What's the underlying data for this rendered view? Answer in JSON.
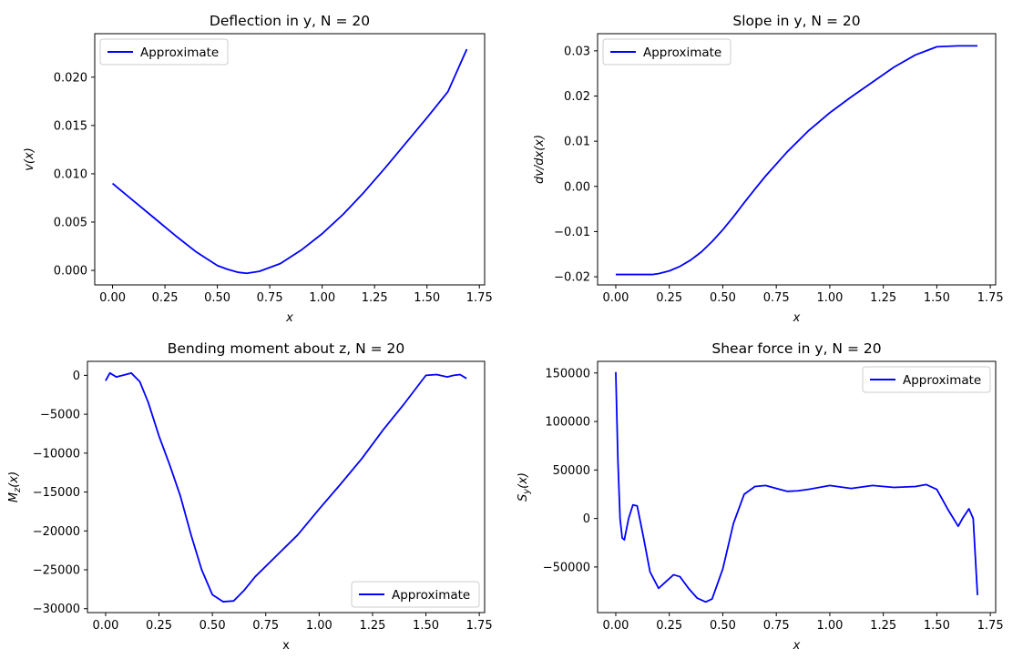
{
  "chart_data": [
    {
      "type": "line",
      "title": "Deflection in y, N = 20",
      "xlabel": "x",
      "ylabel": "v(x)",
      "xlim": [
        -0.085,
        1.775
      ],
      "ylim": [
        -0.0015,
        0.0245
      ],
      "xticks": [
        0,
        0.25,
        0.5,
        0.75,
        1.0,
        1.25,
        1.5,
        1.75
      ],
      "xtick_labels": [
        "0.00",
        "0.25",
        "0.50",
        "0.75",
        "1.00",
        "1.25",
        "1.50",
        "1.75"
      ],
      "yticks": [
        0,
        0.005,
        0.01,
        0.015,
        0.02
      ],
      "ytick_labels": [
        "0.000",
        "0.005",
        "0.010",
        "0.015",
        "0.020"
      ],
      "legend": "top-left",
      "series": [
        {
          "name": "Approximate",
          "color": "#0000ff",
          "x": [
            0,
            0.1,
            0.2,
            0.3,
            0.4,
            0.5,
            0.55,
            0.6,
            0.64,
            0.7,
            0.8,
            0.9,
            1.0,
            1.1,
            1.2,
            1.3,
            1.4,
            1.5,
            1.6,
            1.69
          ],
          "y": [
            0.009,
            0.0072,
            0.0054,
            0.0036,
            0.0019,
            0.0005,
            0.0001,
            -0.0002,
            -0.0003,
            -0.0001,
            0.0007,
            0.0021,
            0.0038,
            0.0058,
            0.0081,
            0.0106,
            0.0132,
            0.0158,
            0.0185,
            0.0229
          ]
        }
      ]
    },
    {
      "type": "line",
      "title": "Slope in y, N = 20",
      "xlabel": "x",
      "ylabel": "dv/dx(x)",
      "xlim": [
        -0.085,
        1.775
      ],
      "ylim": [
        -0.0218,
        0.0338
      ],
      "xticks": [
        0,
        0.25,
        0.5,
        0.75,
        1.0,
        1.25,
        1.5,
        1.75
      ],
      "xtick_labels": [
        "0.00",
        "0.25",
        "0.50",
        "0.75",
        "1.00",
        "1.25",
        "1.50",
        "1.75"
      ],
      "yticks": [
        -0.02,
        -0.01,
        0,
        0.01,
        0.02,
        0.03
      ],
      "ytick_labels": [
        "−0.02",
        "−0.01",
        "0.00",
        "0.01",
        "0.02",
        "0.03"
      ],
      "legend": "top-left",
      "series": [
        {
          "name": "Approximate",
          "color": "#0000ff",
          "x": [
            0,
            0.1,
            0.17,
            0.2,
            0.25,
            0.3,
            0.35,
            0.4,
            0.45,
            0.5,
            0.55,
            0.6,
            0.65,
            0.7,
            0.8,
            0.9,
            1.0,
            1.1,
            1.2,
            1.3,
            1.4,
            1.5,
            1.6,
            1.69
          ],
          "y": [
            -0.0195,
            -0.0195,
            -0.0195,
            -0.0193,
            -0.0187,
            -0.0177,
            -0.0163,
            -0.0145,
            -0.0122,
            -0.0096,
            -0.0067,
            -0.0036,
            -0.0006,
            0.0023,
            0.0076,
            0.0123,
            0.0163,
            0.0198,
            0.0231,
            0.0264,
            0.0291,
            0.0309,
            0.0311,
            0.0311
          ]
        }
      ]
    },
    {
      "type": "line",
      "title": "Bending moment about z, N = 20",
      "xlabel": "x",
      "ylabel": "Mz(x)",
      "xlim": [
        -0.085,
        1.775
      ],
      "ylim": [
        -30500,
        1800
      ],
      "xticks": [
        0,
        0.25,
        0.5,
        0.75,
        1.0,
        1.25,
        1.5,
        1.75
      ],
      "xtick_labels": [
        "0.00",
        "0.25",
        "0.50",
        "0.75",
        "1.00",
        "1.25",
        "1.50",
        "1.75"
      ],
      "yticks": [
        0,
        -5000,
        -10000,
        -15000,
        -20000,
        -25000,
        -30000
      ],
      "ytick_labels": [
        "0",
        "−5000",
        "−10000",
        "−15000",
        "−20000",
        "−25000",
        "−30000"
      ],
      "legend": "bottom-right",
      "series": [
        {
          "name": "Approximate",
          "color": "#0000ff",
          "x": [
            0,
            0.02,
            0.05,
            0.08,
            0.12,
            0.16,
            0.2,
            0.25,
            0.3,
            0.35,
            0.4,
            0.45,
            0.5,
            0.55,
            0.6,
            0.65,
            0.7,
            0.8,
            0.9,
            1.0,
            1.1,
            1.2,
            1.3,
            1.4,
            1.5,
            1.55,
            1.6,
            1.63,
            1.66,
            1.69
          ],
          "y": [
            -700,
            300,
            -200,
            0,
            300,
            -800,
            -3500,
            -7800,
            -11500,
            -15500,
            -20500,
            -25000,
            -28200,
            -29100,
            -29000,
            -27600,
            -25900,
            -23200,
            -20500,
            -17200,
            -14000,
            -10700,
            -7000,
            -3600,
            0,
            100,
            -200,
            0,
            100,
            -400
          ]
        }
      ]
    },
    {
      "type": "line",
      "title": "Shear force in y, N = 20",
      "xlabel": "x",
      "ylabel": "Sy(x)",
      "xlim": [
        -0.085,
        1.775
      ],
      "ylim": [
        -97000,
        162000
      ],
      "xticks": [
        0,
        0.25,
        0.5,
        0.75,
        1.0,
        1.25,
        1.5,
        1.75
      ],
      "xtick_labels": [
        "0.00",
        "0.25",
        "0.50",
        "0.75",
        "1.00",
        "1.25",
        "1.50",
        "1.75"
      ],
      "yticks": [
        150000,
        100000,
        50000,
        0,
        -50000
      ],
      "ytick_labels": [
        "150000",
        "100000",
        "50000",
        "0",
        "−50000"
      ],
      "legend": "top-right",
      "series": [
        {
          "name": "Approximate",
          "color": "#0000ff",
          "x": [
            0,
            0.01,
            0.02,
            0.03,
            0.04,
            0.06,
            0.08,
            0.1,
            0.13,
            0.16,
            0.2,
            0.23,
            0.27,
            0.3,
            0.34,
            0.38,
            0.42,
            0.45,
            0.5,
            0.55,
            0.6,
            0.65,
            0.7,
            0.75,
            0.8,
            0.85,
            0.9,
            1.0,
            1.1,
            1.2,
            1.3,
            1.4,
            1.45,
            1.5,
            1.55,
            1.6,
            1.62,
            1.65,
            1.67,
            1.69
          ],
          "y": [
            151000,
            60000,
            0,
            -20000,
            -22000,
            0,
            14000,
            13000,
            -20000,
            -55000,
            -72000,
            -66000,
            -58000,
            -60000,
            -72000,
            -82000,
            -86000,
            -83000,
            -52000,
            -5000,
            25000,
            33000,
            34000,
            31000,
            28000,
            28500,
            30000,
            34000,
            31000,
            34000,
            32000,
            33000,
            35000,
            30000,
            10000,
            -8000,
            0,
            10000,
            0,
            -79000
          ]
        }
      ]
    }
  ]
}
